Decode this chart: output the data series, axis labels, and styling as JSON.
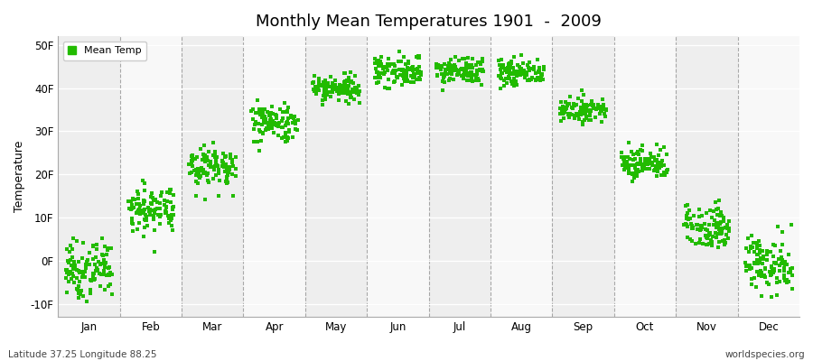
{
  "title": "Monthly Mean Temperatures 1901  -  2009",
  "ylabel": "Temperature",
  "xlabel_months": [
    "Jan",
    "Feb",
    "Mar",
    "Apr",
    "May",
    "Jun",
    "Jul",
    "Aug",
    "Sep",
    "Oct",
    "Nov",
    "Dec"
  ],
  "yticks": [
    -10,
    0,
    10,
    20,
    30,
    40,
    50
  ],
  "ytick_labels": [
    "-10F",
    "0F",
    "10F",
    "20F",
    "30F",
    "40F",
    "50F"
  ],
  "ylim": [
    -13,
    52
  ],
  "xlim": [
    0,
    12
  ],
  "dot_color": "#22bb00",
  "dot_size": 5,
  "bg_color": "#ffffff",
  "plot_bg_color": "#ffffff",
  "band_color_odd": "#eeeeee",
  "band_color_even": "#f8f8f8",
  "vline_color": "#888888",
  "footer_left": "Latitude 37.25 Longitude 88.25",
  "footer_right": "worldspecies.org",
  "legend_label": "Mean Temp",
  "n_years": 109,
  "monthly_means": [
    -2.0,
    12.0,
    22.0,
    32.0,
    40.0,
    44.0,
    44.0,
    43.5,
    35.0,
    22.5,
    8.0,
    -1.0
  ],
  "monthly_stds": [
    3.2,
    2.8,
    2.5,
    2.3,
    1.8,
    1.8,
    1.5,
    1.5,
    1.2,
    1.8,
    2.5,
    3.5
  ],
  "x_jitter": 0.38
}
